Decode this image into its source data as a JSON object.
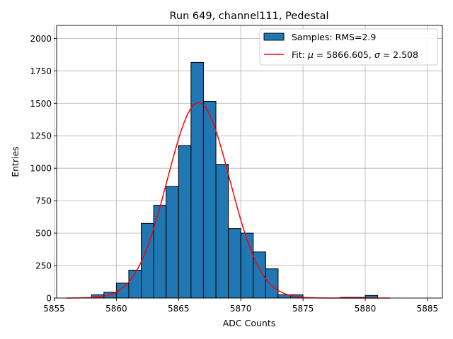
{
  "chart_data": {
    "type": "bar",
    "title": "Run 649, channel111, Pedestal",
    "xlabel": "ADC Counts",
    "ylabel": "Entries",
    "xlim": [
      5855.2,
      5886.2
    ],
    "ylim": [
      0,
      2100
    ],
    "grid": true,
    "legend_position": "top-right",
    "xticks": [
      5855,
      5860,
      5865,
      5870,
      5875,
      5880,
      5885
    ],
    "yticks": [
      0,
      250,
      500,
      750,
      1000,
      1250,
      1500,
      1750,
      2000
    ],
    "histogram": {
      "name": "Samples: RMS=2.9",
      "color": "#1f77b4",
      "edge_color": "#000000",
      "bin_width": 1,
      "bin_lefts": [
        5858,
        5859,
        5860,
        5861,
        5862,
        5863,
        5864,
        5865,
        5866,
        5867,
        5868,
        5869,
        5870,
        5871,
        5872,
        5873,
        5874,
        5878,
        5879,
        5880
      ],
      "counts": [
        25,
        45,
        115,
        215,
        575,
        715,
        860,
        1175,
        1815,
        1515,
        1030,
        535,
        500,
        355,
        225,
        25,
        25,
        5,
        5,
        20
      ]
    },
    "fit": {
      "name": "Fit: μ = 5866.605, σ = 2.508",
      "color": "#ff0000",
      "mu": 5866.605,
      "sigma": 2.508,
      "amplitude": 1505,
      "x_range": [
        5856,
        5882
      ]
    }
  }
}
